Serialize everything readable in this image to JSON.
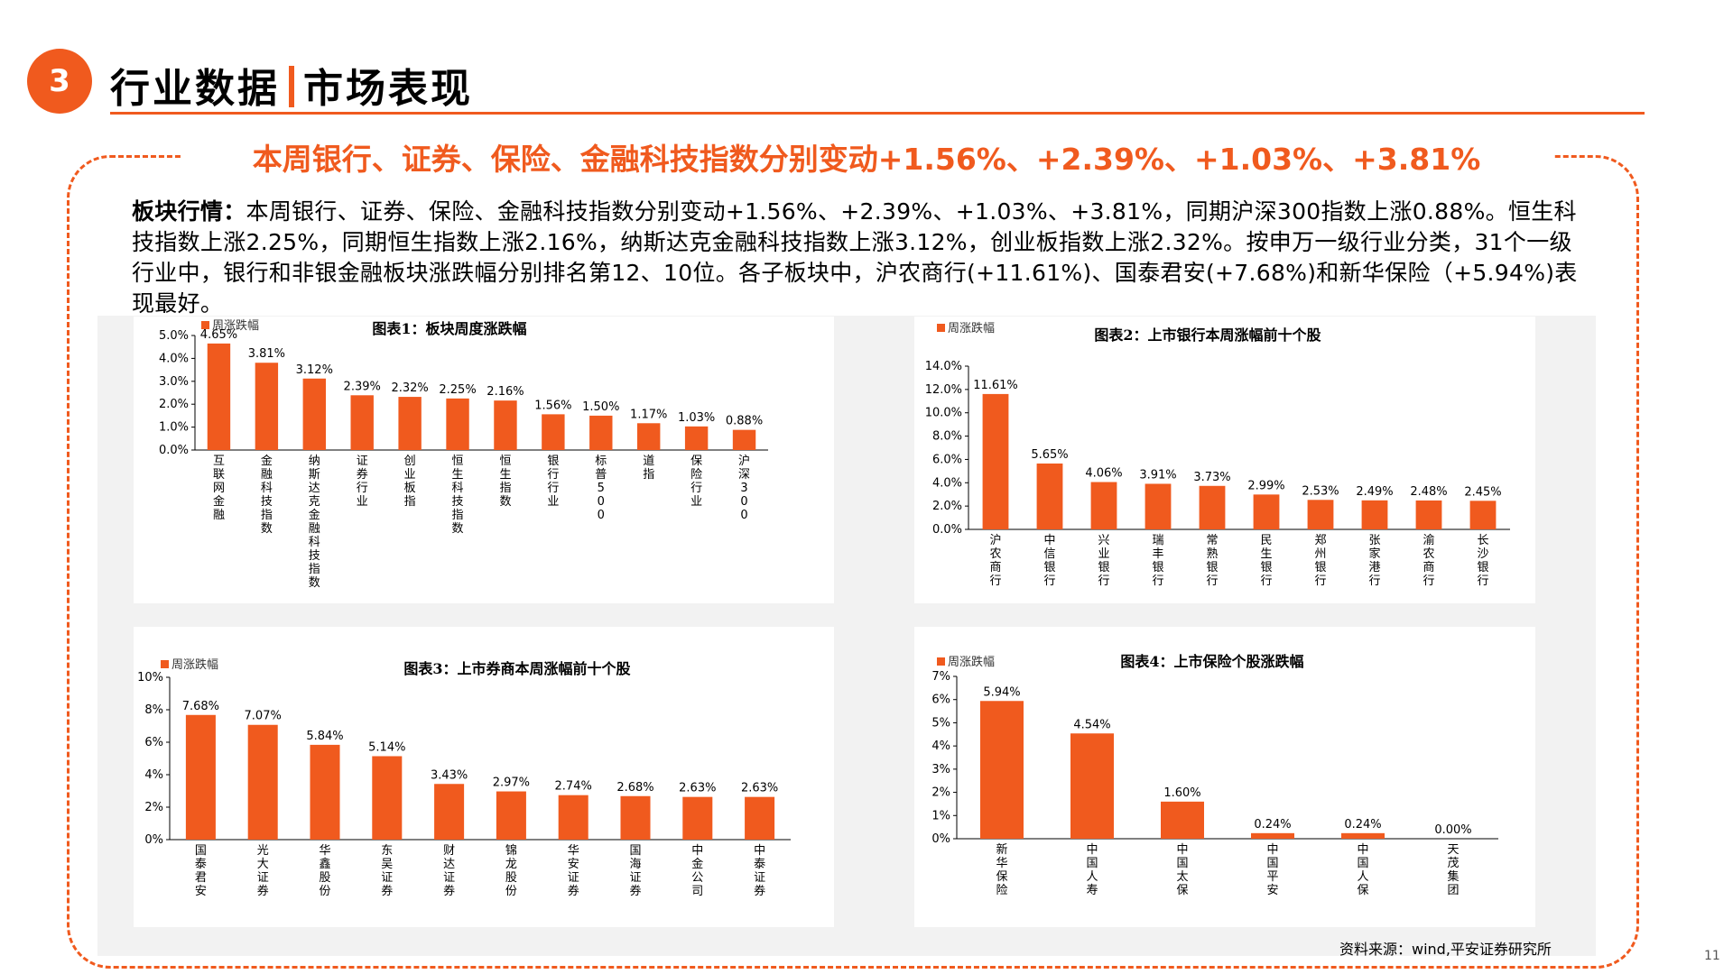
{
  "header": {
    "number": "3",
    "title_left": "行业数据",
    "title_right": "市场表现"
  },
  "headline": "本周银行、证券、保险、金融科技指数分别变动+1.56%、+2.39%、+1.03%、+3.81%",
  "summary": {
    "label": "板块行情：",
    "text": "本周银行、证券、保险、金融科技指数分别变动+1.56%、+2.39%、+1.03%、+3.81%，同期沪深300指数上涨0.88%。恒生科技指数上涨2.25%，同期恒生指数上涨2.16%，纳斯达克金融科技指数上涨3.12%，创业板指数上涨2.32%。按申万一级行业分类，31个一级行业中，银行和非银金融板块涨跌幅分别排名第12、10位。各子板块中，沪农商行(+11.61%)、国泰君安(+7.68%)和新华保险（+5.94%)表现最好。"
  },
  "colors": {
    "accent": "#f05a1e",
    "bar": "#f05a1e"
  },
  "chart_data": [
    {
      "type": "bar",
      "title": "图表1：板块周度涨跌幅",
      "legend": "周涨跌幅",
      "categories": [
        "互联网金融",
        "金融科技指数",
        "纳斯达克金融科技指数",
        "证券行业",
        "创业板指",
        "恒生科技指数",
        "恒生指数",
        "银行行业",
        "标普500",
        "道指",
        "保险行业",
        "沪深300"
      ],
      "values": [
        4.65,
        3.81,
        3.12,
        2.39,
        2.32,
        2.25,
        2.16,
        1.56,
        1.5,
        1.17,
        1.03,
        0.88
      ],
      "labels": [
        "4.65%",
        "3.81%",
        "3.12%",
        "2.39%",
        "2.32%",
        "2.25%",
        "2.16%",
        "1.56%",
        "1.50%",
        "1.17%",
        "1.03%",
        "0.88%"
      ],
      "yticks": [
        "0.0%",
        "1.0%",
        "2.0%",
        "3.0%",
        "4.0%",
        "5.0%"
      ],
      "ylim": [
        0,
        5
      ]
    },
    {
      "type": "bar",
      "title": "图表2：上市银行本周涨幅前十个股",
      "legend": "周涨跌幅",
      "categories": [
        "沪农商行",
        "中信银行",
        "兴业银行",
        "瑞丰银行",
        "常熟银行",
        "民生银行",
        "郑州银行",
        "张家港行",
        "渝农商行",
        "长沙银行"
      ],
      "values": [
        11.61,
        5.65,
        4.06,
        3.91,
        3.73,
        2.99,
        2.53,
        2.49,
        2.48,
        2.45
      ],
      "labels": [
        "11.61%",
        "5.65%",
        "4.06%",
        "3.91%",
        "3.73%",
        "2.99%",
        "2.53%",
        "2.49%",
        "2.48%",
        "2.45%"
      ],
      "yticks": [
        "0.0%",
        "2.0%",
        "4.0%",
        "6.0%",
        "8.0%",
        "10.0%",
        "12.0%",
        "14.0%"
      ],
      "ylim": [
        0,
        14
      ]
    },
    {
      "type": "bar",
      "title": "图表3：上市券商本周涨幅前十个股",
      "legend": "周涨跌幅",
      "categories": [
        "国泰君安",
        "光大证券",
        "华鑫股份",
        "东吴证券",
        "财达证券",
        "锦龙股份",
        "华安证券",
        "国海证券",
        "中金公司",
        "中泰证券"
      ],
      "values": [
        7.68,
        7.07,
        5.84,
        5.14,
        3.43,
        2.97,
        2.74,
        2.68,
        2.63,
        2.63
      ],
      "labels": [
        "7.68%",
        "7.07%",
        "5.84%",
        "5.14%",
        "3.43%",
        "2.97%",
        "2.74%",
        "2.68%",
        "2.63%",
        "2.63%"
      ],
      "yticks": [
        "0%",
        "2%",
        "4%",
        "6%",
        "8%",
        "10%"
      ],
      "ylim": [
        0,
        10
      ]
    },
    {
      "type": "bar",
      "title": "图表4：上市保险个股涨跌幅",
      "legend": "周涨跌幅",
      "categories": [
        "新华保险",
        "中国人寿",
        "中国太保",
        "中国平安",
        "中国人保",
        "天茂集团"
      ],
      "values": [
        5.94,
        4.54,
        1.6,
        0.24,
        0.24,
        0.0
      ],
      "labels": [
        "5.94%",
        "4.54%",
        "1.60%",
        "0.24%",
        "0.24%",
        "0.00%"
      ],
      "yticks": [
        "0%",
        "1%",
        "2%",
        "3%",
        "4%",
        "5%",
        "6%",
        "7%"
      ],
      "ylim": [
        0,
        7
      ]
    }
  ],
  "source": "资料来源：wind,平安证券研究所",
  "page_number": "11"
}
